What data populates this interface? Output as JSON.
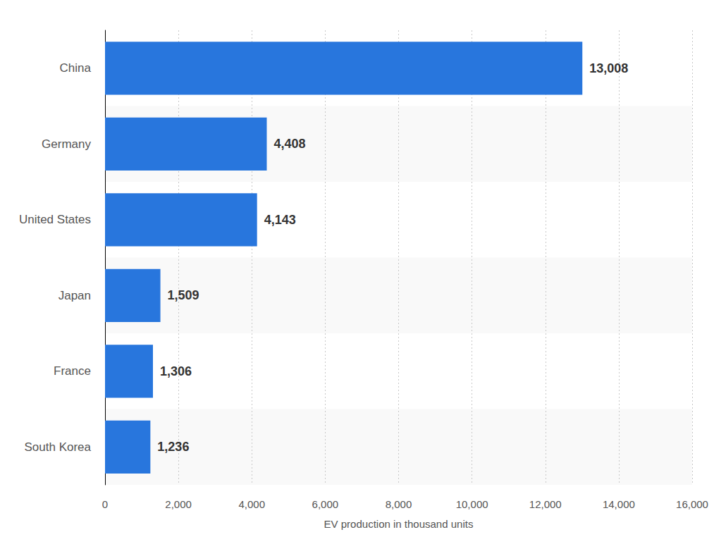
{
  "chart_data": {
    "type": "bar",
    "orientation": "horizontal",
    "categories": [
      "China",
      "Germany",
      "United States",
      "Japan",
      "France",
      "South Korea"
    ],
    "values": [
      13008,
      4408,
      4143,
      1509,
      1306,
      1236
    ],
    "value_labels": [
      "13,008",
      "4,408",
      "4,143",
      "1,509",
      "1,306",
      "1,236"
    ],
    "data_labels": true,
    "color": "#2876dd",
    "x_label": "EV production in thousand units",
    "xlim": [
      0,
      16000
    ],
    "xticks": [
      0,
      {
        "value": 2000,
        "label": "2,000"
      },
      {
        "value": 4000,
        "label": "4,000"
      },
      {
        "value": 6000,
        "label": "6,000"
      },
      {
        "value": 8000,
        "label": "8,000"
      },
      {
        "value": 10000,
        "label": "10,000"
      },
      {
        "value": 12000,
        "label": "12,000"
      },
      {
        "value": 14000,
        "label": "14,000"
      },
      {
        "value": 16000,
        "label": "16,000"
      }
    ],
    "grid": true
  }
}
